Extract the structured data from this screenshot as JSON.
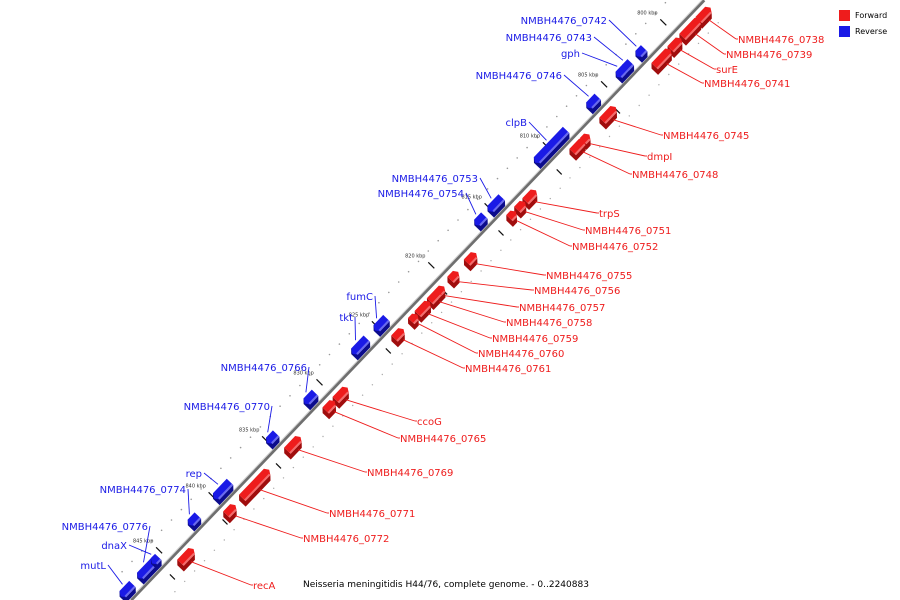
{
  "colors": {
    "forward": "#ee1c1c",
    "reverse": "#1a1ae6",
    "backbone": "#888888"
  },
  "legend": {
    "forward": "Forward",
    "reverse": "Reverse"
  },
  "caption": "Neisseria meningitidis H44/76, complete genome. - 0..2240883",
  "chart_data": {
    "type": "linear-genome-map",
    "axis_ticks": [
      "800 kbp",
      "805 kbp",
      "810 kbp",
      "815 kbp",
      "820 kbp",
      "825 kbp",
      "830 kbp",
      "835 kbp",
      "840 kbp",
      "845 kbp"
    ],
    "genes": [
      {
        "name": "NMBH4476_0738",
        "strand": "forward"
      },
      {
        "name": "NMBH4476_0739",
        "strand": "forward"
      },
      {
        "name": "surE",
        "strand": "forward"
      },
      {
        "name": "NMBH4476_0741",
        "strand": "forward"
      },
      {
        "name": "NMBH4476_0742",
        "strand": "reverse"
      },
      {
        "name": "NMBH4476_0743",
        "strand": "reverse"
      },
      {
        "name": "gph",
        "strand": "reverse"
      },
      {
        "name": "NMBH4476_0745",
        "strand": "forward"
      },
      {
        "name": "NMBH4476_0746",
        "strand": "reverse"
      },
      {
        "name": "dmpI",
        "strand": "forward"
      },
      {
        "name": "clpB",
        "strand": "reverse"
      },
      {
        "name": "NMBH4476_0748",
        "strand": "forward"
      },
      {
        "name": "trpS",
        "strand": "forward"
      },
      {
        "name": "NMBH4476_0751",
        "strand": "forward"
      },
      {
        "name": "NMBH4476_0752",
        "strand": "forward"
      },
      {
        "name": "NMBH4476_0753",
        "strand": "reverse"
      },
      {
        "name": "NMBH4476_0754",
        "strand": "reverse"
      },
      {
        "name": "NMBH4476_0755",
        "strand": "forward"
      },
      {
        "name": "NMBH4476_0756",
        "strand": "forward"
      },
      {
        "name": "NMBH4476_0757",
        "strand": "forward"
      },
      {
        "name": "NMBH4476_0758",
        "strand": "forward"
      },
      {
        "name": "NMBH4476_0759",
        "strand": "forward"
      },
      {
        "name": "NMBH4476_0760",
        "strand": "forward"
      },
      {
        "name": "NMBH4476_0761",
        "strand": "forward"
      },
      {
        "name": "fumC",
        "strand": "reverse"
      },
      {
        "name": "tkt",
        "strand": "reverse"
      },
      {
        "name": "NMBH4476_0766",
        "strand": "reverse"
      },
      {
        "name": "ccoG",
        "strand": "forward"
      },
      {
        "name": "NMBH4476_0765",
        "strand": "forward"
      },
      {
        "name": "NMBH4476_0770",
        "strand": "reverse"
      },
      {
        "name": "NMBH4476_0769",
        "strand": "forward"
      },
      {
        "name": "rep",
        "strand": "reverse"
      },
      {
        "name": "NMBH4476_0774",
        "strand": "reverse"
      },
      {
        "name": "NMBH4476_0771",
        "strand": "forward"
      },
      {
        "name": "NMBH4476_0772",
        "strand": "forward"
      },
      {
        "name": "NMBH4476_0776",
        "strand": "reverse"
      },
      {
        "name": "dnaX",
        "strand": "reverse"
      },
      {
        "name": "mutL",
        "strand": "reverse"
      },
      {
        "name": "recA",
        "strand": "forward"
      }
    ]
  }
}
